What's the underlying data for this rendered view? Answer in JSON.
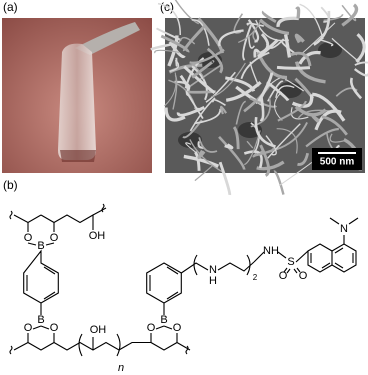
{
  "panels": {
    "a": {
      "label": "(a)"
    },
    "b": {
      "label": "(b)"
    },
    "c": {
      "label": "(c)",
      "scale_bar": "500 nm"
    }
  },
  "structure": {
    "atoms": [
      "O",
      "O",
      "B",
      "OH",
      "B",
      "O",
      "O",
      "OH",
      "n",
      "B",
      "O",
      "O",
      "N",
      "H",
      "2",
      "NH",
      "S",
      "O",
      "O",
      "N"
    ]
  }
}
